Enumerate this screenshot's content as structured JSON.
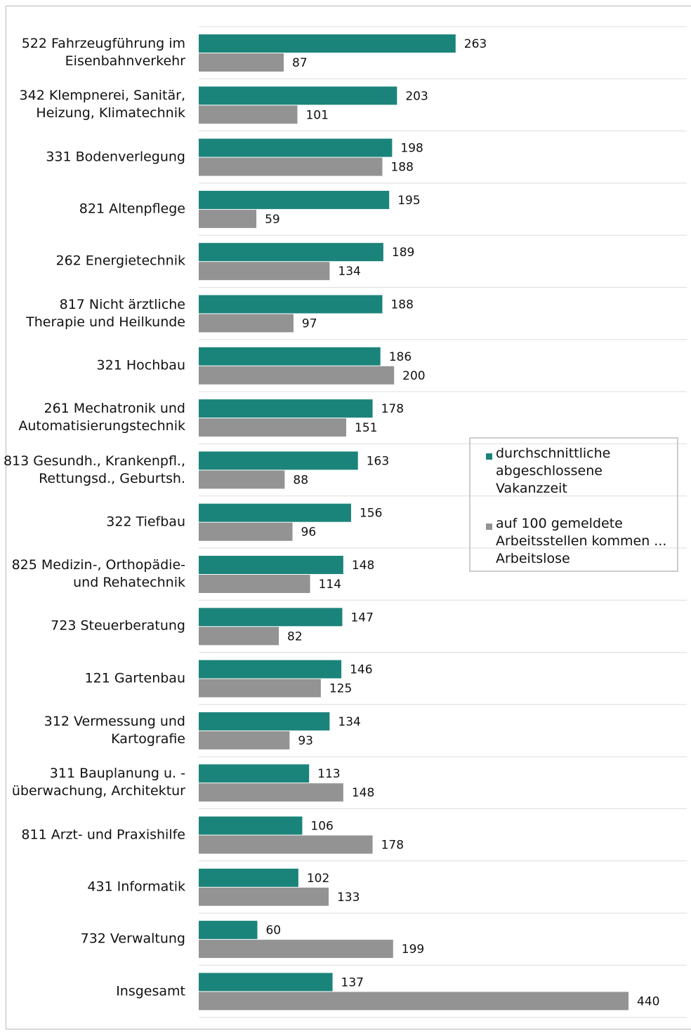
{
  "chart_data": {
    "type": "bar",
    "orientation": "horizontal",
    "categories": [
      "522 Fahrzeugführung im\nEisenbahnverkehr",
      "342 Klempnerei, Sanitär,\nHeizung, Klimatechnik",
      "331 Bodenverlegung",
      "821 Altenpflege",
      "262 Energietechnik",
      "817 Nicht ärztliche\nTherapie und Heilkunde",
      "321 Hochbau",
      "261 Mechatronik und\nAutomatisierungstechnik",
      "813 Gesundh., Krankenpfl.,\nRettungsd., Geburtsh.",
      "322 Tiefbau",
      "825 Medizin-, Orthopädie-\nund Rehatechnik",
      "723 Steuerberatung",
      "121 Gartenbau",
      "312 Vermessung und\nKartografie",
      "311 Bauplanung u. -\nüberwachung, Architektur",
      "811 Arzt- und Praxishilfe",
      "431 Informatik",
      "732 Verwaltung",
      "Insgesamt"
    ],
    "series": [
      {
        "name": "durchschnittliche\nabgeschlossene Vakanzzeit",
        "color": "#1b847a",
        "values": [
          263,
          203,
          198,
          195,
          189,
          188,
          186,
          178,
          163,
          156,
          148,
          147,
          146,
          134,
          113,
          106,
          102,
          60,
          137
        ]
      },
      {
        "name": "auf 100 gemeldete\nArbeitsstellen kommen ...\nArbeitslose",
        "color": "#939393",
        "values": [
          87,
          101,
          188,
          59,
          134,
          97,
          200,
          151,
          88,
          96,
          114,
          82,
          125,
          93,
          148,
          178,
          133,
          199,
          440
        ]
      }
    ],
    "legend": "right"
  }
}
